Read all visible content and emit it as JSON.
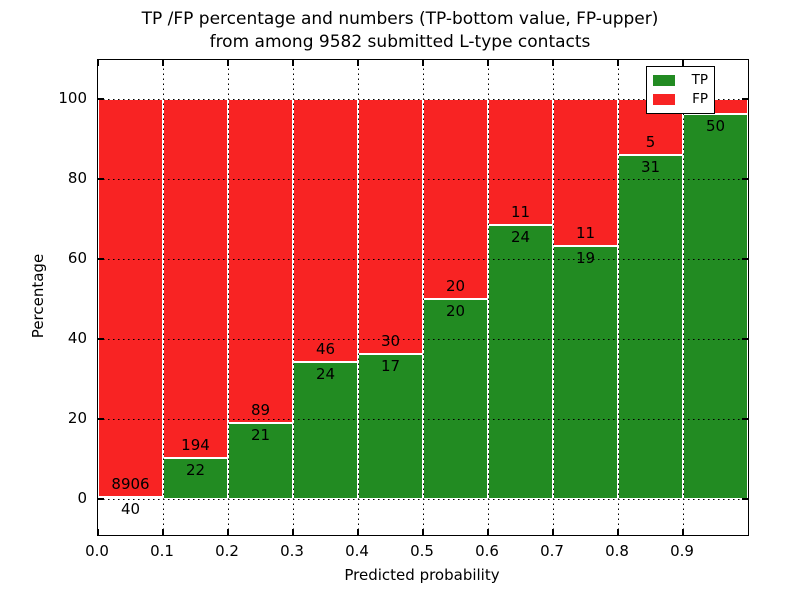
{
  "title": {
    "line1": "TP /FP percentage and numbers (TP-bottom value, FP-upper)",
    "line2": "from among 9582 submitted L-type contacts"
  },
  "axes": {
    "xlabel": "Predicted probability",
    "ylabel": "Percentage"
  },
  "legend": {
    "items": [
      {
        "label": "TP",
        "color": "#228b22"
      },
      {
        "label": "FP",
        "color": "#f82323"
      }
    ]
  },
  "chart_data": {
    "type": "bar",
    "subtype": "stacked-percentage-histogram",
    "title": "TP /FP percentage and numbers (TP-bottom value, FP-upper) from among 9582 submitted L-type contacts",
    "total_submitted": 9582,
    "xlabel": "Predicted probability",
    "ylabel": "Percentage",
    "x_tick_labels": [
      "0.0",
      "0.1",
      "0.2",
      "0.3",
      "0.4",
      "0.5",
      "0.6",
      "0.7",
      "0.8",
      "0.9"
    ],
    "y_tick_values": [
      0,
      20,
      40,
      60,
      80,
      100
    ],
    "y_tick_labels": [
      "0",
      "20",
      "40",
      "60",
      "80",
      "100"
    ],
    "xlim": [
      0.0,
      1.0
    ],
    "ylim": [
      0,
      100
    ],
    "bin_width": 0.1,
    "grid": "dotted",
    "legend_position": "upper right",
    "series": [
      {
        "name": "TP",
        "color": "#228b22"
      },
      {
        "name": "FP",
        "color": "#f82323"
      }
    ],
    "bins": [
      {
        "range": "0.0-0.1",
        "tp": 40,
        "fp": 8906,
        "tp_pct": 0.45
      },
      {
        "range": "0.1-0.2",
        "tp": 22,
        "fp": 194,
        "tp_pct": 10.2
      },
      {
        "range": "0.2-0.3",
        "tp": 21,
        "fp": 89,
        "tp_pct": 19.1
      },
      {
        "range": "0.3-0.4",
        "tp": 24,
        "fp": 46,
        "tp_pct": 34.3
      },
      {
        "range": "0.4-0.5",
        "tp": 17,
        "fp": 30,
        "tp_pct": 36.2
      },
      {
        "range": "0.5-0.6",
        "tp": 20,
        "fp": 20,
        "tp_pct": 50.0
      },
      {
        "range": "0.6-0.7",
        "tp": 24,
        "fp": 11,
        "tp_pct": 68.6
      },
      {
        "range": "0.7-0.8",
        "tp": 19,
        "fp": 11,
        "tp_pct": 63.3
      },
      {
        "range": "0.8-0.9",
        "tp": 31,
        "fp": 5,
        "tp_pct": 86.1
      },
      {
        "range": "0.9-1.0",
        "tp": 50,
        "fp": null,
        "tp_pct": 96.2
      }
    ],
    "tp_labels": [
      "40",
      "22",
      "21",
      "24",
      "17",
      "20",
      "24",
      "19",
      "31",
      "50"
    ],
    "fp_labels": [
      "8906",
      "194",
      "89",
      "46",
      "30",
      "20",
      "11",
      "11",
      "5",
      ""
    ]
  }
}
